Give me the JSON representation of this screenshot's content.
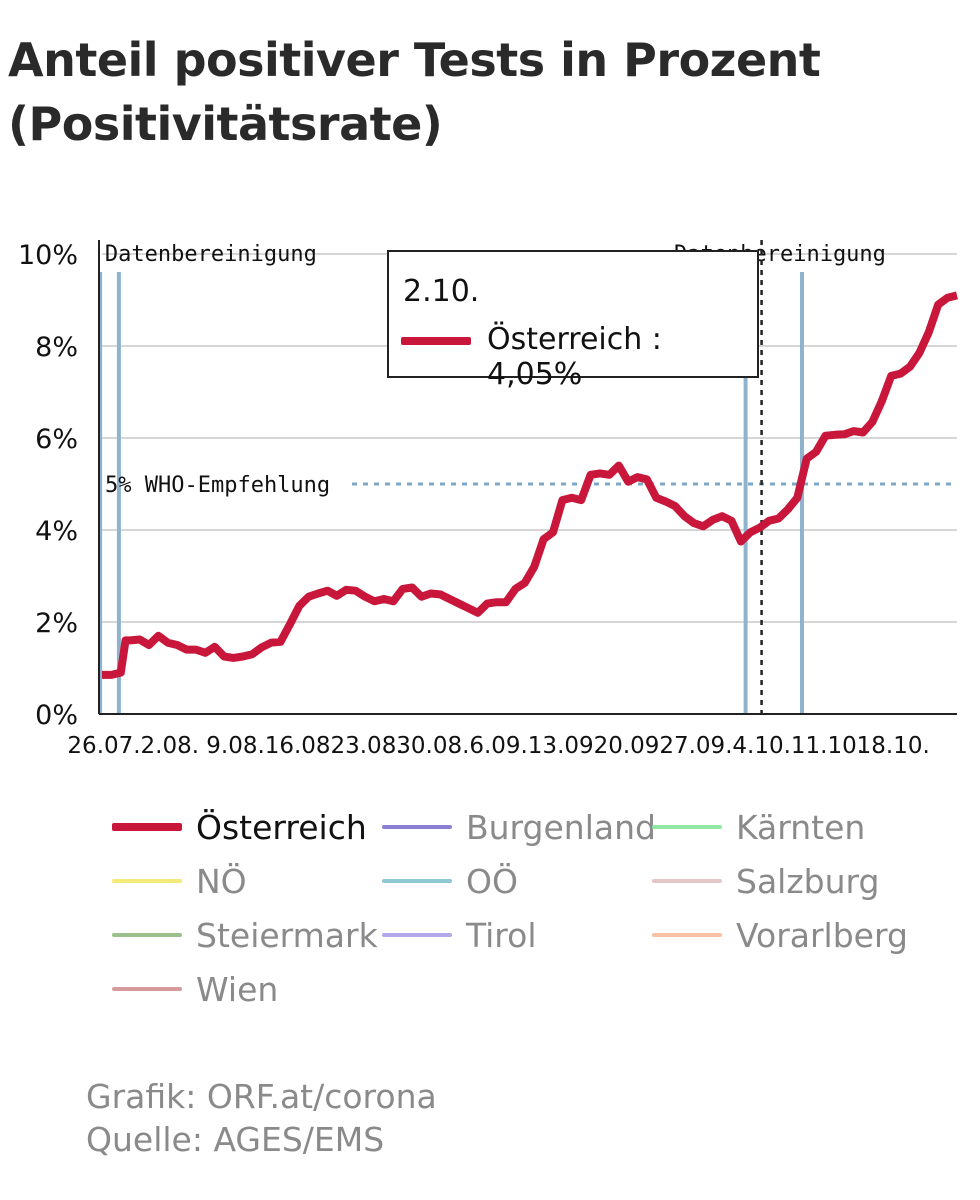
{
  "title": {
    "line1": "Anteil positiver Tests in Prozent",
    "line2": "(Positivitätsrate)"
  },
  "tooltip": {
    "date": "2.10.",
    "text": "Österreich : 4,05%"
  },
  "annotations": {
    "cleanup_left": "Datenbereinigung",
    "cleanup_right": "Datenbereinigung",
    "who": "5% WHO-Empfehlung"
  },
  "colors": {
    "main_series": "#c8173a",
    "grid": "#c8c8c8",
    "marker": "#8fb3cc",
    "who_line": "#7fa8c4",
    "axis": "#222222"
  },
  "chart_data": {
    "type": "line",
    "title": "Anteil positiver Tests in Prozent (Positivitätsrate)",
    "xlabel": "",
    "ylabel": "",
    "ylim": [
      0,
      10
    ],
    "xlim": [
      0,
      91
    ],
    "y_ticks": [
      0,
      2,
      4,
      6,
      8,
      10
    ],
    "y_tick_labels": [
      "0%",
      "2%",
      "4%",
      "6%",
      "8%",
      "10%"
    ],
    "x_ticks": [
      0,
      7,
      14,
      21,
      28,
      35,
      42,
      49,
      56,
      63,
      70,
      77,
      84
    ],
    "x_tick_labels": [
      "26.07.",
      "2.08.",
      "9.08.",
      "16.08.",
      "23.08.",
      "30.08.",
      "6.09.",
      "13.09.",
      "20.09.",
      "27.09.",
      "4.10.",
      "11.10.",
      "18.10."
    ],
    "grid": true,
    "reference_line": {
      "value": 5,
      "label": "5% WHO-Empfehlung"
    },
    "vertical_markers": [
      {
        "x": -0.2,
        "label": "Datenbereinigung"
      },
      {
        "x": 1.8,
        "label": ""
      },
      {
        "x": 68.5,
        "label": ""
      },
      {
        "x": 74.5,
        "label": "Datenbereinigung"
      }
    ],
    "hover_x": 70.2,
    "series": [
      {
        "name": "Österreich",
        "x": [
          0,
          1,
          2,
          2.5,
          3,
          4,
          5,
          6,
          7,
          8,
          9,
          10,
          11,
          12,
          13,
          14,
          15,
          16,
          17,
          18,
          19,
          20,
          21,
          22,
          23,
          24,
          25,
          26,
          27,
          28,
          29,
          30,
          31,
          32,
          33,
          34,
          35,
          36,
          37,
          38,
          39,
          40,
          41,
          42,
          43,
          44,
          45,
          46,
          47,
          48,
          49,
          50,
          51,
          52,
          53,
          54,
          55,
          56,
          57,
          58,
          59,
          60,
          61,
          62,
          63,
          64,
          65,
          66,
          67,
          68,
          69,
          70,
          71,
          72,
          73,
          74,
          75,
          76,
          77,
          78,
          79,
          80,
          81,
          82,
          83,
          84,
          85,
          86,
          87,
          88,
          89,
          90,
          91
        ],
        "values": [
          0.85,
          0.85,
          0.9,
          1.6,
          1.6,
          1.62,
          1.5,
          1.7,
          1.55,
          1.5,
          1.4,
          1.4,
          1.33,
          1.46,
          1.25,
          1.22,
          1.25,
          1.3,
          1.45,
          1.55,
          1.57,
          1.95,
          2.35,
          2.55,
          2.62,
          2.68,
          2.57,
          2.7,
          2.68,
          2.55,
          2.45,
          2.5,
          2.45,
          2.72,
          2.75,
          2.55,
          2.62,
          2.6,
          2.5,
          2.4,
          2.3,
          2.2,
          2.4,
          2.43,
          2.43,
          2.72,
          2.85,
          3.2,
          3.8,
          3.95,
          4.65,
          4.7,
          4.65,
          5.2,
          5.23,
          5.2,
          5.4,
          5.05,
          5.15,
          5.1,
          4.7,
          4.62,
          4.52,
          4.3,
          4.15,
          4.08,
          4.22,
          4.3,
          4.2,
          3.75,
          3.95,
          4.05,
          4.2,
          4.25,
          4.45,
          4.7,
          5.55,
          5.7,
          6.05,
          6.07,
          6.08,
          6.15,
          6.12,
          6.35,
          6.8,
          7.35,
          7.4,
          7.55,
          7.85,
          8.3,
          8.9,
          9.05,
          9.1
        ]
      }
    ]
  },
  "legend": [
    {
      "label": "Österreich",
      "color": "#c8173a",
      "active": true
    },
    {
      "label": "Burgenland",
      "color": "#8a7fd4",
      "active": false
    },
    {
      "label": "Kärnten",
      "color": "#8ee8a4",
      "active": false
    },
    {
      "label": "NÖ",
      "color": "#f4ea7a",
      "active": false
    },
    {
      "label": "OÖ",
      "color": "#8ec9d4",
      "active": false
    },
    {
      "label": "Salzburg",
      "color": "#e6c7c7",
      "active": false
    },
    {
      "label": "Steiermark",
      "color": "#9cc08c",
      "active": false
    },
    {
      "label": "Tirol",
      "color": "#b3a8ec",
      "active": false
    },
    {
      "label": "Vorarlberg",
      "color": "#f8c0a4",
      "active": false
    },
    {
      "label": "Wien",
      "color": "#d69a9a",
      "active": false
    }
  ],
  "footer": {
    "line1": "Grafik: ORF.at/corona",
    "line2": "Quelle: AGES/EMS"
  }
}
